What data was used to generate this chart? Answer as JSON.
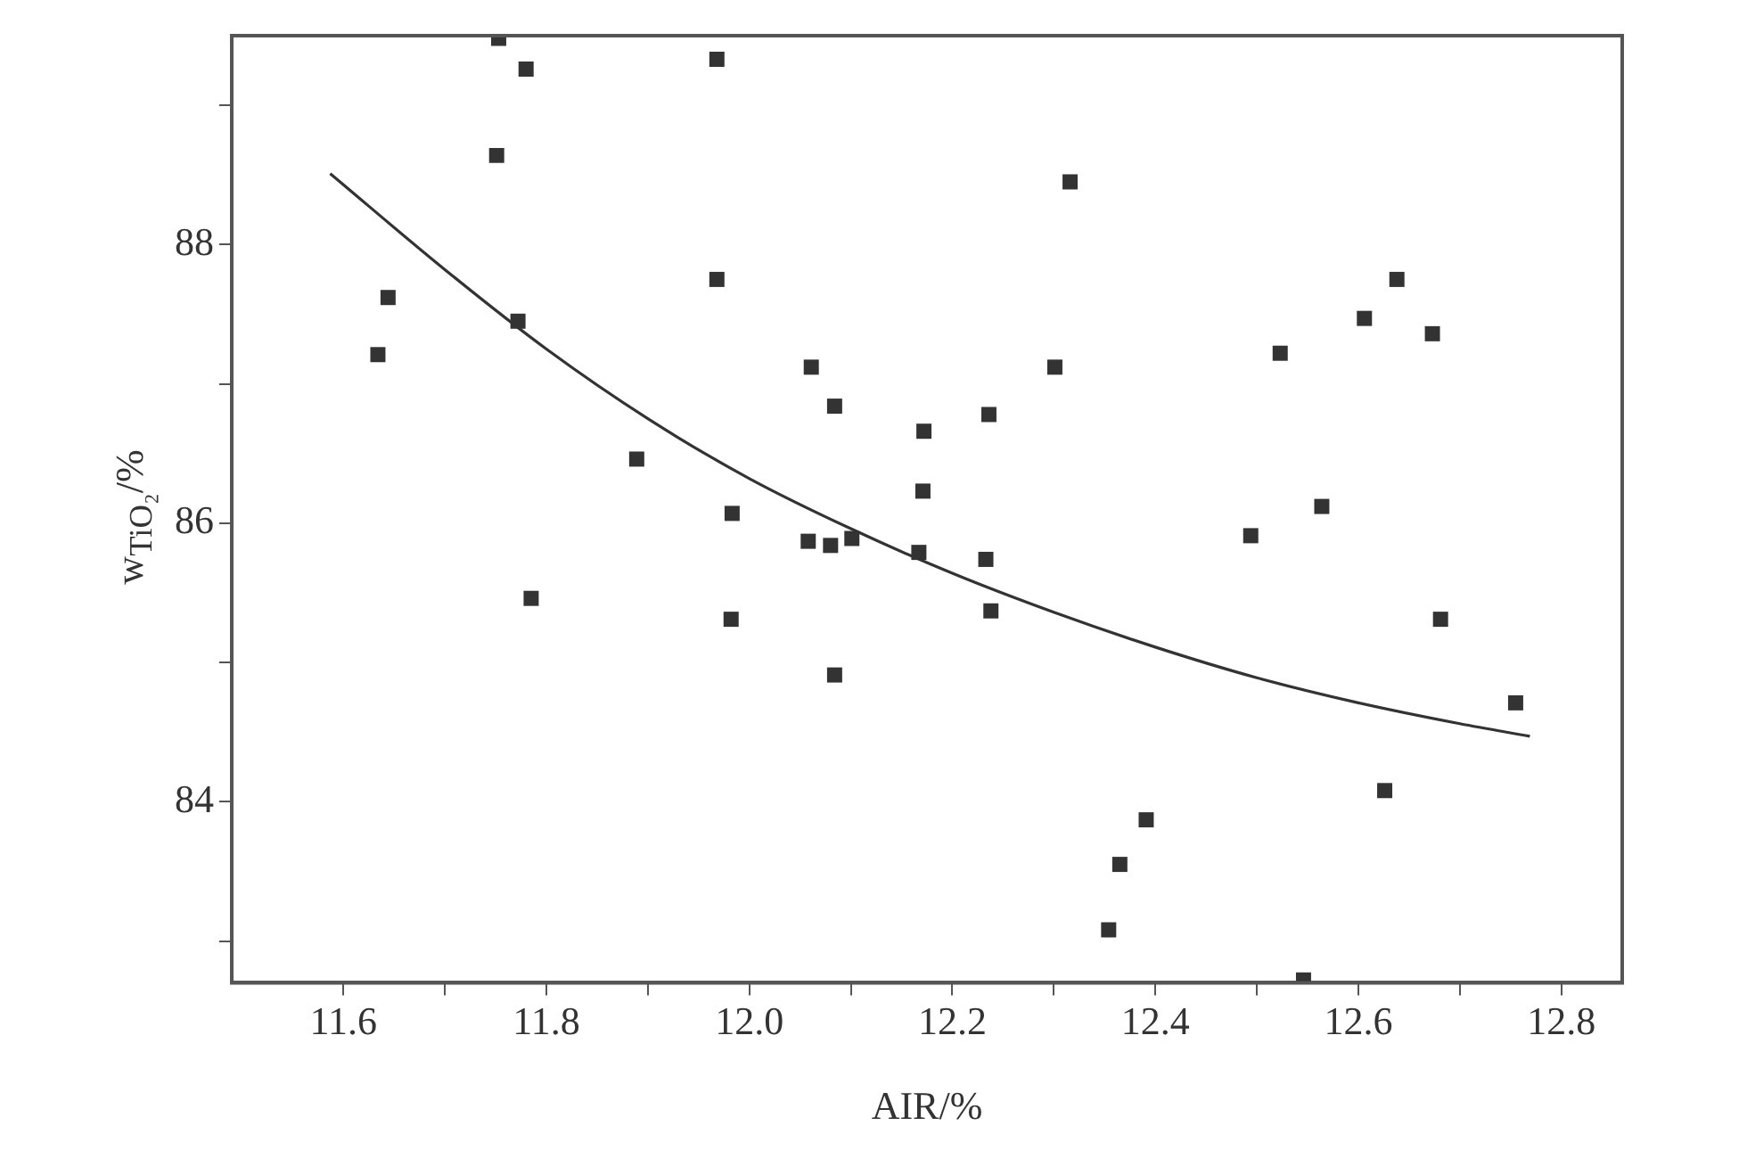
{
  "chart_data": {
    "type": "scatter",
    "xlabel": "AIR/%",
    "ylabel": "w$_{TiO₂}$/%",
    "xlim": [
      11.49,
      12.86
    ],
    "ylim": [
      82.7,
      89.5
    ],
    "xticks": [
      11.6,
      {
        "value": 11.7,
        "label": null
      },
      11.8,
      {
        "value": 11.9,
        "label": null
      },
      {
        "value": 12.0,
        "label": "12.0"
      },
      {
        "value": 12.1,
        "label": null
      },
      12.2,
      {
        "value": 12.3,
        "label": null
      },
      12.4,
      {
        "value": 12.5,
        "label": null
      },
      12.6,
      {
        "value": 12.7,
        "label": null
      },
      12.8
    ],
    "yticks": [
      {
        "value": 83,
        "label": null
      },
      84,
      {
        "value": 85,
        "label": null
      },
      86,
      {
        "value": 87,
        "label": null
      },
      88,
      {
        "value": 89,
        "label": null
      }
    ],
    "grid": false,
    "legend": false,
    "marker": "square",
    "series": [
      {
        "color": "#333333",
        "x": [
          11.753,
          11.78,
          11.968,
          11.751,
          11.644,
          11.772,
          11.634,
          11.968,
          12.061,
          12.084,
          12.172,
          11.889,
          12.171,
          11.983,
          12.058,
          12.08,
          12.101,
          12.167,
          11.785,
          11.982,
          12.084,
          12.316,
          12.638,
          12.606,
          12.673,
          12.523,
          12.301,
          12.236,
          12.564,
          12.494,
          12.233,
          12.238,
          12.681,
          12.755,
          12.626,
          12.391,
          12.365,
          12.354,
          12.546
        ],
        "values": [
          89.48,
          89.26,
          89.33,
          88.64,
          87.62,
          87.45,
          87.21,
          87.75,
          87.12,
          86.84,
          86.66,
          86.46,
          86.23,
          86.07,
          85.87,
          85.84,
          85.89,
          85.79,
          85.46,
          85.31,
          84.91,
          88.45,
          87.75,
          87.47,
          87.36,
          87.22,
          87.12,
          86.78,
          86.12,
          85.91,
          85.74,
          85.37,
          85.31,
          84.71,
          84.08,
          83.87,
          83.55,
          83.08,
          82.72
        ]
      },
      {
        "type": "line",
        "marker": "none",
        "color": "#333333",
        "x": [
          11.587,
          11.7,
          11.8,
          11.9,
          12.0,
          12.1,
          12.2,
          12.3,
          12.4,
          12.5,
          12.6,
          12.7,
          12.769
        ],
        "values": [
          88.51,
          87.82,
          87.25,
          86.75,
          86.32,
          85.96,
          85.64,
          85.36,
          85.11,
          84.89,
          84.71,
          84.56,
          84.47
        ]
      }
    ]
  }
}
